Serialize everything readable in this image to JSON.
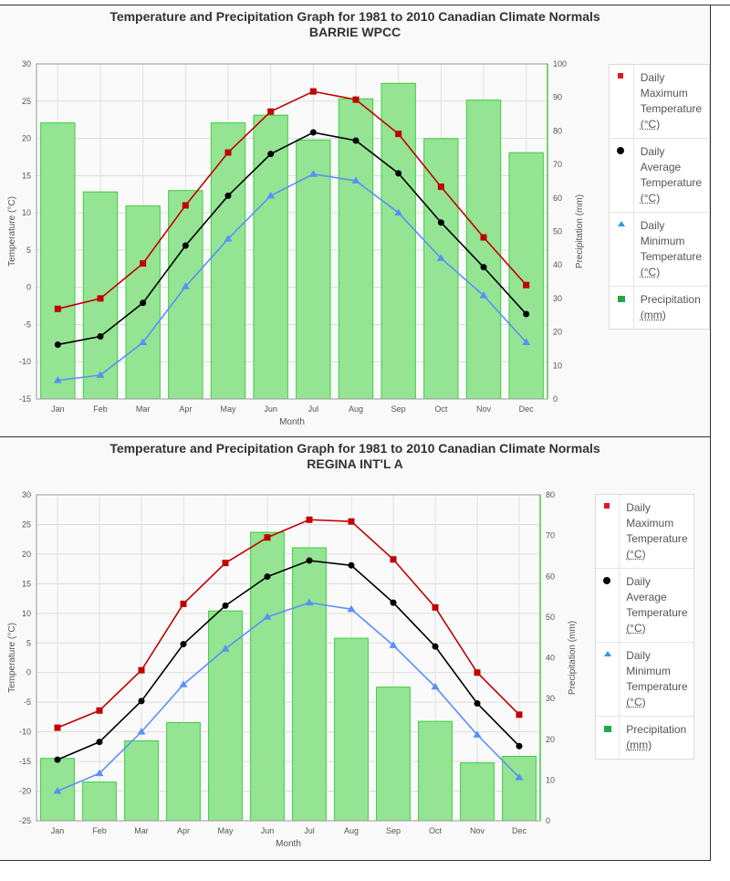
{
  "legend": [
    {
      "label": "Daily Maximum Temperature",
      "unit": "(°C)",
      "color": "#e8141e",
      "marker": "square"
    },
    {
      "label": "Daily Average Temperature",
      "unit": "(°C)",
      "color": "#000000",
      "marker": "circle"
    },
    {
      "label": "Daily Minimum Temperature",
      "unit": "(°C)",
      "color": "#2e9be6",
      "marker": "triangle"
    },
    {
      "label": "Precipitation",
      "unit": "(mm)",
      "color": "#23a847",
      "marker": "bar"
    }
  ],
  "chart_data": [
    {
      "type": "bar+line",
      "title": "Temperature and Precipitation Graph for 1981 to 2010 Canadian Climate Normals",
      "subtitle": "BARRIE WPCC",
      "xlabel": "Month",
      "ylabel": "Temperature (°C)",
      "y2label": "Precipitation (mm)",
      "categories": [
        "Jan",
        "Feb",
        "Mar",
        "Apr",
        "May",
        "Jun",
        "Jul",
        "Aug",
        "Sep",
        "Oct",
        "Nov",
        "Dec"
      ],
      "ylim": [
        -15,
        30
      ],
      "yticks": [
        "-15",
        "-10",
        "-5",
        "0",
        "5",
        "10",
        "15",
        "20",
        "25",
        "30"
      ],
      "y2lim": [
        0,
        100
      ],
      "y2ticks": [
        "0",
        "10",
        "20",
        "30",
        "40",
        "50",
        "60",
        "70",
        "80",
        "90",
        "100"
      ],
      "grid": true,
      "legend_position": "right",
      "series": [
        {
          "name": "Daily Maximum Temperature (°C)",
          "kind": "line",
          "color": "#c00000",
          "values": [
            -2.9,
            -1.5,
            3.2,
            11.0,
            18.1,
            23.6,
            26.3,
            25.2,
            20.6,
            13.5,
            6.7,
            0.3
          ]
        },
        {
          "name": "Daily Average Temperature (°C)",
          "kind": "line",
          "color": "#000000",
          "values": [
            -7.7,
            -6.6,
            -2.1,
            5.6,
            12.3,
            17.9,
            20.8,
            19.7,
            15.3,
            8.7,
            2.7,
            -3.6
          ]
        },
        {
          "name": "Daily Minimum Temperature (°C)",
          "kind": "line",
          "color": "#5b8ff9",
          "values": [
            -12.5,
            -11.8,
            -7.4,
            0.1,
            6.5,
            12.3,
            15.2,
            14.3,
            10.0,
            3.9,
            -1.1,
            -7.4
          ]
        },
        {
          "name": "Precipitation (mm)",
          "kind": "bar",
          "color": "#8ee38e",
          "values": [
            82.4,
            61.8,
            57.6,
            62.2,
            82.4,
            84.7,
            77.3,
            89.6,
            94.2,
            77.7,
            89.2,
            73.5
          ]
        }
      ]
    },
    {
      "type": "bar+line",
      "title": "Temperature and Precipitation Graph for 1981 to 2010 Canadian Climate Normals",
      "subtitle": "REGINA INT'L A",
      "xlabel": "Month",
      "ylabel": "Temperature (°C)",
      "y2label": "Precipitation (mm)",
      "categories": [
        "Jan",
        "Feb",
        "Mar",
        "Apr",
        "May",
        "Jun",
        "Jul",
        "Aug",
        "Sep",
        "Oct",
        "Nov",
        "Dec"
      ],
      "ylim": [
        -25,
        30
      ],
      "yticks": [
        "-25",
        "-20",
        "-15",
        "-10",
        "-5",
        "0",
        "5",
        "10",
        "15",
        "20",
        "25",
        "30"
      ],
      "y2lim": [
        0,
        80
      ],
      "y2ticks": [
        "0",
        "10",
        "20",
        "30",
        "40",
        "50",
        "60",
        "70",
        "80"
      ],
      "grid": true,
      "legend_position": "right",
      "series": [
        {
          "name": "Daily Maximum Temperature (°C)",
          "kind": "line",
          "color": "#c00000",
          "values": [
            -9.3,
            -6.4,
            0.4,
            11.6,
            18.5,
            22.8,
            25.8,
            25.5,
            19.1,
            11.0,
            0.0,
            -7.1
          ]
        },
        {
          "name": "Daily Average Temperature (°C)",
          "kind": "line",
          "color": "#000000",
          "values": [
            -14.7,
            -11.7,
            -4.8,
            4.8,
            11.3,
            16.2,
            18.9,
            18.1,
            11.8,
            4.4,
            -5.2,
            -12.4
          ]
        },
        {
          "name": "Daily Minimum Temperature (°C)",
          "kind": "line",
          "color": "#5b8ff9",
          "values": [
            -20.0,
            -17.0,
            -10.0,
            -2.0,
            4.0,
            9.4,
            11.8,
            10.7,
            4.6,
            -2.4,
            -10.5,
            -17.7
          ]
        },
        {
          "name": "Precipitation (mm)",
          "kind": "bar",
          "color": "#8ee38e",
          "values": [
            15.3,
            9.5,
            19.6,
            24.1,
            51.5,
            70.8,
            67.0,
            44.8,
            32.8,
            24.4,
            14.2,
            15.8
          ]
        }
      ]
    }
  ]
}
